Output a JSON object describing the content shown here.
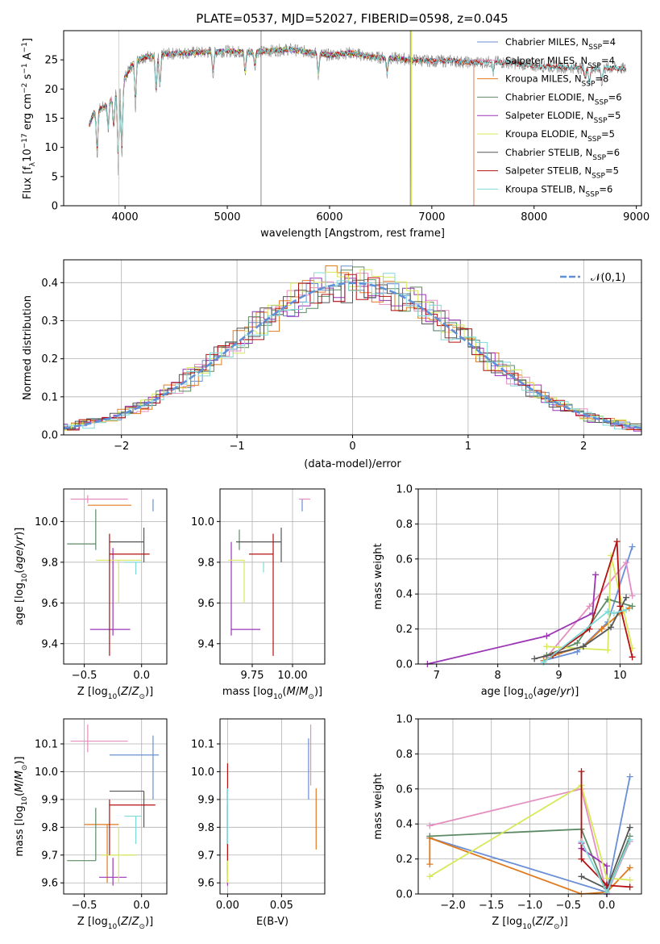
{
  "title": "PLATE=0537, MJD=52027, FIBERID=0598, z=0.045",
  "colors": {
    "Chabrier MILES": "#6a8fd6",
    "Salpeter MILES": "#e58ec0",
    "Kroupa MILES": "#e07a1f",
    "Chabrier ELODIE": "#5d8a64",
    "Salpeter ELODIE": "#9b35b5",
    "Kroupa ELODIE": "#d8e85a",
    "Chabrier STELIB": "#555555",
    "Salpeter STELIB": "#b51010",
    "Kroupa STELIB": "#7fd8d8"
  },
  "chart_data": [
    {
      "type": "line",
      "panel": "spectrum",
      "xlabel": "wavelength [Angstrom, rest frame]",
      "ylabel": "Flux [f_λ10^-17 erg cm^-2 s^-1 A^-1]",
      "xlim": [
        3400,
        9050
      ],
      "ylim": [
        0,
        30
      ],
      "xticks": [
        4000,
        5000,
        6000,
        7000,
        8000,
        9000
      ],
      "yticks": [
        0,
        5,
        10,
        15,
        20,
        25
      ],
      "legend_position": "top-right",
      "legend": [
        {
          "model": "Chabrier MILES",
          "nssp": "4"
        },
        {
          "model": "Salpeter MILES",
          "nssp": "4"
        },
        {
          "model": "Kroupa MILES",
          "nssp": "8"
        },
        {
          "model": "Chabrier ELODIE",
          "nssp": "6"
        },
        {
          "model": "Salpeter ELODIE",
          "nssp": "5"
        },
        {
          "model": "Kroupa ELODIE",
          "nssp": "5"
        },
        {
          "model": "Chabrier STELIB",
          "nssp": "6"
        },
        {
          "model": "Salpeter STELIB",
          "nssp": "5"
        },
        {
          "model": "Kroupa STELIB",
          "nssp": "6"
        }
      ],
      "continuum": {
        "x": [
          3650,
          3700,
          3800,
          3900,
          4000,
          4100,
          4200,
          4400,
          4600,
          4800,
          5000,
          5200,
          5400,
          5600,
          5800,
          6000,
          6200,
          6400,
          6600,
          6800,
          7000,
          7200,
          7400,
          7600,
          7800,
          8000,
          8200,
          8400,
          8600,
          8800,
          8900
        ],
        "y": [
          14,
          16,
          17,
          19,
          22,
          25,
          25.5,
          26,
          26.2,
          26.3,
          26.5,
          26.3,
          26.5,
          26.8,
          26.3,
          25.8,
          26.2,
          25.5,
          25.3,
          25,
          24.8,
          24.8,
          24.5,
          24.7,
          24.4,
          24,
          23.8,
          23.7,
          23.5,
          23.6,
          23.4
        ]
      },
      "spectrum_ranges": {
        "Chabrier MILES": [
          3650,
          7410
        ],
        "Salpeter MILES": [
          3650,
          7410
        ],
        "Kroupa MILES": [
          3650,
          7410
        ],
        "Chabrier ELODIE": [
          3650,
          6800
        ],
        "Salpeter ELODIE": [
          3650,
          6800
        ],
        "Kroupa ELODIE": [
          3650,
          6800
        ],
        "Chabrier STELIB": [
          3650,
          8900
        ],
        "Salpeter STELIB": [
          3650,
          8900
        ],
        "Kroupa STELIB": [
          3650,
          8900
        ]
      }
    },
    {
      "type": "line",
      "panel": "residual-histogram",
      "xlabel": "(data-model)/error",
      "ylabel": "Normed distribution",
      "xlim": [
        -2.5,
        2.5
      ],
      "ylim": [
        0,
        0.46
      ],
      "xticks": [
        -2,
        -1,
        0,
        1,
        2
      ],
      "yticks": [
        0.0,
        0.1,
        0.2,
        0.3,
        0.4
      ],
      "grid": true,
      "reference": {
        "label": "𝒩(0,1)",
        "mean": 0,
        "sigma": 1
      },
      "histogram_bin_width": 0.1,
      "legend_position": "top-right"
    },
    {
      "type": "scatter",
      "panel": "age-vs-Z",
      "xlabel": "Z [log10(Z/Z⊙)]",
      "ylabel": "age  [log10(age/yr)]",
      "xlim": [
        -0.68,
        0.22
      ],
      "ylim": [
        9.3,
        10.16
      ],
      "xticks": [
        -0.5,
        0.0
      ],
      "yticks": [
        9.4,
        9.6,
        9.8,
        10.0
      ],
      "points": [
        {
          "model": "Chabrier MILES",
          "x": 0.1,
          "y": 10.08,
          "xerr": [
            0.0,
            0.0
          ],
          "yerr": [
            0.03,
            0.03
          ]
        },
        {
          "model": "Salpeter MILES",
          "x": -0.47,
          "y": 10.11,
          "xerr": [
            0.15,
            0.35
          ],
          "yerr": [
            0.02,
            0.02
          ]
        },
        {
          "model": "Kroupa MILES",
          "x": -0.47,
          "y": 10.08,
          "xerr": [
            0.0,
            0.38
          ],
          "yerr": [
            0.0,
            0.0
          ]
        },
        {
          "model": "Chabrier ELODIE",
          "x": -0.4,
          "y": 9.89,
          "xerr": [
            0.25,
            0.0
          ],
          "yerr": [
            0.03,
            0.17
          ]
        },
        {
          "model": "Salpeter ELODIE",
          "x": -0.25,
          "y": 9.47,
          "xerr": [
            0.2,
            0.15
          ],
          "yerr": [
            0.03,
            0.4
          ]
        },
        {
          "model": "Kroupa ELODIE",
          "x": -0.2,
          "y": 9.81,
          "xerr": [
            0.2,
            0.2
          ],
          "yerr": [
            0.21,
            0.0
          ]
        },
        {
          "model": "Chabrier STELIB",
          "x": 0.02,
          "y": 9.9,
          "xerr": [
            0.3,
            0.0
          ],
          "yerr": [
            0.1,
            0.07
          ]
        },
        {
          "model": "Salpeter STELIB",
          "x": -0.28,
          "y": 9.84,
          "xerr": [
            0.0,
            0.35
          ],
          "yerr": [
            0.5,
            0.1
          ]
        },
        {
          "model": "Kroupa STELIB",
          "x": -0.05,
          "y": 9.8,
          "xerr": [
            0.1,
            0.05
          ],
          "yerr": [
            0.06,
            0.0
          ]
        }
      ]
    },
    {
      "type": "scatter",
      "panel": "age-vs-mass",
      "xlabel": "mass [log10(M/M⊙)]",
      "ylabel": "",
      "xlim": [
        9.55,
        10.2
      ],
      "ylim": [
        9.3,
        10.16
      ],
      "xticks": [
        9.75,
        10.0
      ],
      "yticks": [
        9.4,
        9.6,
        9.8,
        10.0
      ],
      "points": [
        {
          "model": "Chabrier MILES",
          "x": 10.06,
          "y": 10.08,
          "xerr": [
            0.0,
            0.0
          ],
          "yerr": [
            0.03,
            0.03
          ]
        },
        {
          "model": "Salpeter MILES",
          "x": 10.11,
          "y": 10.11,
          "xerr": [
            0.07,
            0.0
          ],
          "yerr": [
            0.0,
            0.0
          ]
        },
        {
          "model": "Kroupa MILES",
          "x": 9.95,
          "y": 10.08,
          "xerr": [
            0.0,
            0.0
          ],
          "yerr": [
            0.0,
            0.0
          ]
        },
        {
          "model": "Chabrier ELODIE",
          "x": 9.67,
          "y": 9.91,
          "xerr": [
            0.0,
            0.0
          ],
          "yerr": [
            0.05,
            0.05
          ]
        },
        {
          "model": "Salpeter ELODIE",
          "x": 9.62,
          "y": 9.47,
          "xerr": [
            0.0,
            0.18
          ],
          "yerr": [
            0.03,
            0.43
          ]
        },
        {
          "model": "Kroupa ELODIE",
          "x": 9.7,
          "y": 9.81,
          "xerr": [
            0.1,
            0.0
          ],
          "yerr": [
            0.21,
            0.0
          ]
        },
        {
          "model": "Chabrier STELIB",
          "x": 9.93,
          "y": 9.9,
          "xerr": [
            0.28,
            0.0
          ],
          "yerr": [
            0.1,
            0.07
          ]
        },
        {
          "model": "Salpeter STELIB",
          "x": 9.88,
          "y": 9.84,
          "xerr": [
            0.15,
            0.0
          ],
          "yerr": [
            0.5,
            0.1
          ]
        },
        {
          "model": "Kroupa STELIB",
          "x": 9.82,
          "y": 9.8,
          "xerr": [
            0.0,
            0.0
          ],
          "yerr": [
            0.05,
            0.0
          ]
        }
      ]
    },
    {
      "type": "line",
      "panel": "mass-weight-vs-age",
      "xlabel": "age  [log10(age/yr)]",
      "ylabel": "mass weight",
      "xlim": [
        6.7,
        10.35
      ],
      "ylim": [
        0,
        1.0
      ],
      "xticks": [
        7,
        8,
        9,
        10
      ],
      "yticks": [
        0.0,
        0.2,
        0.4,
        0.6,
        0.8,
        1.0
      ],
      "grid": true,
      "series": [
        {
          "model": "Chabrier MILES",
          "x": [
            8.75,
            9.3,
            9.8,
            10.2
          ],
          "y": [
            0.02,
            0.07,
            0.24,
            0.67
          ]
        },
        {
          "model": "Salpeter MILES",
          "x": [
            8.8,
            9.5,
            10.1,
            10.2
          ],
          "y": [
            0.04,
            0.33,
            0.58,
            0.39
          ]
        },
        {
          "model": "Kroupa MILES",
          "x": [
            8.75,
            9.0,
            9.4,
            9.7,
            10.0,
            10.15
          ],
          "y": [
            0.02,
            0.06,
            0.1,
            0.2,
            0.29,
            0.32
          ]
        },
        {
          "model": "Chabrier ELODIE",
          "x": [
            8.8,
            9.3,
            9.8,
            10.2
          ],
          "y": [
            0.05,
            0.12,
            0.37,
            0.33
          ]
        },
        {
          "model": "Salpeter ELODIE",
          "x": [
            6.85,
            8.8,
            9.55,
            9.6
          ],
          "y": [
            0.0,
            0.16,
            0.29,
            0.51
          ]
        },
        {
          "model": "Kroupa ELODIE",
          "x": [
            8.8,
            9.8,
            9.85,
            10.2
          ],
          "y": [
            0.1,
            0.08,
            0.62,
            0.09
          ]
        },
        {
          "model": "Chabrier STELIB",
          "x": [
            8.6,
            9.4,
            9.85,
            10.1
          ],
          "y": [
            0.03,
            0.1,
            0.21,
            0.38
          ]
        },
        {
          "model": "Salpeter STELIB",
          "x": [
            8.9,
            9.5,
            9.95,
            10.0,
            10.2
          ],
          "y": [
            0.05,
            0.2,
            0.7,
            0.33,
            0.04
          ]
        },
        {
          "model": "Kroupa STELIB",
          "x": [
            8.75,
            9.8,
            9.9,
            10.1
          ],
          "y": [
            0.01,
            0.3,
            0.29,
            0.31
          ]
        }
      ]
    },
    {
      "type": "scatter",
      "panel": "mass-vs-Z",
      "xlabel": "Z [log10(Z/Z⊙)]",
      "ylabel": "mass [log10(M/M⊙)]",
      "xlim": [
        -0.68,
        0.22
      ],
      "ylim": [
        9.56,
        10.19
      ],
      "xticks": [
        -0.5,
        0.0
      ],
      "yticks": [
        9.6,
        9.7,
        9.8,
        9.9,
        10.0,
        10.1
      ],
      "points": [
        {
          "model": "Chabrier MILES",
          "x": 0.1,
          "y": 10.06,
          "xerr": [
            0.38,
            0.05
          ],
          "yerr": [
            0.16,
            0.07
          ]
        },
        {
          "model": "Salpeter MILES",
          "x": -0.47,
          "y": 10.11,
          "xerr": [
            0.15,
            0.35
          ],
          "yerr": [
            0.04,
            0.06
          ]
        },
        {
          "model": "Kroupa MILES",
          "x": -0.3,
          "y": 9.81,
          "xerr": [
            0.2,
            0.1
          ],
          "yerr": [
            0.21,
            0.0
          ]
        },
        {
          "model": "Chabrier ELODIE",
          "x": -0.4,
          "y": 9.68,
          "xerr": [
            0.25,
            0.0
          ],
          "yerr": [
            0.0,
            0.19
          ]
        },
        {
          "model": "Salpeter ELODIE",
          "x": -0.25,
          "y": 9.62,
          "xerr": [
            0.12,
            0.12
          ],
          "yerr": [
            0.03,
            0.07
          ]
        },
        {
          "model": "Kroupa ELODIE",
          "x": -0.2,
          "y": 9.7,
          "xerr": [
            0.15,
            0.15
          ],
          "yerr": [
            0.1,
            0.1
          ]
        },
        {
          "model": "Chabrier STELIB",
          "x": 0.02,
          "y": 9.93,
          "xerr": [
            0.3,
            0.0
          ],
          "yerr": [
            0.13,
            0.0
          ]
        },
        {
          "model": "Salpeter STELIB",
          "x": -0.28,
          "y": 9.88,
          "xerr": [
            0.0,
            0.4
          ],
          "yerr": [
            0.18,
            0.02
          ]
        },
        {
          "model": "Kroupa STELIB",
          "x": -0.05,
          "y": 9.84,
          "xerr": [
            0.1,
            0.05
          ],
          "yerr": [
            0.1,
            0.0
          ]
        }
      ]
    },
    {
      "type": "scatter",
      "panel": "mass-vs-ebv",
      "xlabel": "E(B-V)",
      "ylabel": "",
      "xlim": [
        -0.007,
        0.09
      ],
      "ylim": [
        9.56,
        10.19
      ],
      "xticks": [
        0.0,
        0.05
      ],
      "xtick_labels": [
        "0.00",
        "0.05"
      ],
      "yticks": [
        9.6,
        9.7,
        9.8,
        9.9,
        10.0,
        10.1
      ],
      "points": [
        {
          "model": "Chabrier MILES",
          "x": 0.075,
          "y": 10.06,
          "yerr": [
            0.16,
            0.06
          ]
        },
        {
          "model": "Salpeter MILES",
          "x": 0.077,
          "y": 10.11,
          "yerr": [
            0.16,
            0.06
          ]
        },
        {
          "model": "Kroupa MILES",
          "x": 0.082,
          "y": 9.83,
          "yerr": [
            0.11,
            0.11
          ]
        },
        {
          "model": "Chabrier ELODIE",
          "x": 0.0,
          "y": 9.68,
          "yerr": [
            0.05,
            0.2
          ]
        },
        {
          "model": "Salpeter ELODIE",
          "x": 0.0,
          "y": 9.62,
          "yerr": [
            0.03,
            0.05
          ]
        },
        {
          "model": "Kroupa ELODIE",
          "x": 0.0,
          "y": 9.7,
          "yerr": [
            0.1,
            0.1
          ]
        },
        {
          "model": "Chabrier STELIB",
          "x": 0.0,
          "y": 9.93,
          "yerr": [
            0.03,
            0.0
          ]
        },
        {
          "model": "Salpeter STELIB",
          "x": 0.0,
          "y": 9.88,
          "yerr": [
            0.2,
            0.15
          ]
        },
        {
          "model": "Kroupa STELIB",
          "x": 0.0,
          "y": 9.84,
          "yerr": [
            0.1,
            0.1
          ]
        }
      ]
    },
    {
      "type": "line",
      "panel": "mass-weight-vs-Z",
      "xlabel": "Z [log10(Z/Z⊙)]",
      "ylabel": "mass weight",
      "xlim": [
        -2.45,
        0.45
      ],
      "ylim": [
        0,
        1.0
      ],
      "xticks": [
        -2.0,
        -1.5,
        -1.0,
        -0.5,
        0.0
      ],
      "yticks": [
        0.0,
        0.2,
        0.4,
        0.6,
        0.8,
        1.0
      ],
      "grid": true,
      "series": [
        {
          "model": "Chabrier MILES",
          "x": [
            -2.3,
            0.0,
            0.3
          ],
          "y": [
            0.32,
            0.01,
            0.67
          ]
        },
        {
          "model": "Salpeter MILES",
          "x": [
            -2.3,
            -0.33,
            0.0,
            0.3
          ],
          "y": [
            0.39,
            0.6,
            0.0,
            0.3
          ]
        },
        {
          "model": "Kroupa MILES",
          "x": [
            -2.3,
            -2.3,
            -0.33,
            0.0,
            0.3
          ],
          "y": [
            0.17,
            0.32,
            0.0,
            0.01,
            0.15
          ]
        },
        {
          "model": "Chabrier ELODIE",
          "x": [
            -2.3,
            -0.33,
            0.0,
            0.3
          ],
          "y": [
            0.33,
            0.37,
            0.01,
            0.33
          ]
        },
        {
          "model": "Salpeter ELODIE",
          "x": [
            -0.33,
            -0.33,
            0.0,
            0.0
          ],
          "y": [
            0.29,
            0.26,
            0.16,
            0.0
          ]
        },
        {
          "model": "Kroupa ELODIE",
          "x": [
            -2.3,
            -0.33,
            0.0,
            0.3
          ],
          "y": [
            0.1,
            0.62,
            0.09,
            0.08
          ]
        },
        {
          "model": "Chabrier STELIB",
          "x": [
            -0.33,
            0.0,
            0.3
          ],
          "y": [
            0.1,
            0.03,
            0.38
          ]
        },
        {
          "model": "Salpeter STELIB",
          "x": [
            -0.33,
            -0.33,
            0.0,
            0.3
          ],
          "y": [
            0.7,
            0.2,
            0.05,
            0.04
          ]
        },
        {
          "model": "Kroupa STELIB",
          "x": [
            -0.33,
            0.0,
            0.3
          ],
          "y": [
            0.3,
            0.01,
            0.31
          ]
        }
      ]
    }
  ]
}
